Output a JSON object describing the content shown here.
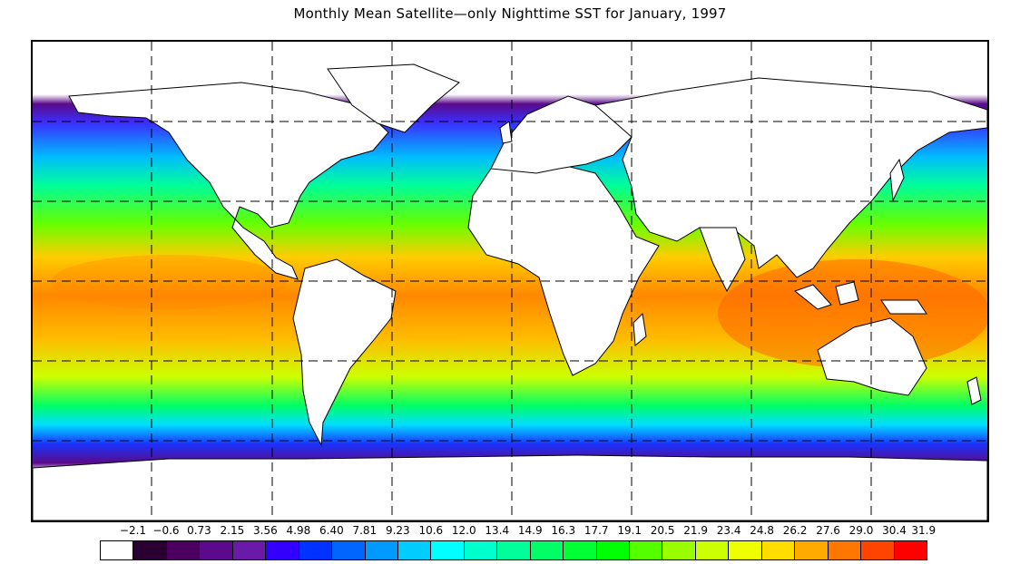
{
  "title": "Monthly Mean Satellite—only Nighttime SST for January, 1997",
  "legend": {
    "labels": [
      "−2.1",
      "−0.6",
      "0.73",
      "2.15",
      "3.56",
      "4.98",
      "6.40",
      "7.81",
      "9.23",
      "10.6",
      "12.0",
      "13.4",
      "14.9",
      "16.3",
      "17.7",
      "19.1",
      "20.5",
      "21.9",
      "23.4",
      "24.8",
      "26.2",
      "27.6",
      "29.0",
      "30.4",
      "31.9"
    ],
    "colors": [
      "#ffffff",
      "#2a0033",
      "#4b0060",
      "#5a0a8a",
      "#6a1aa8",
      "#3300ff",
      "#0033ff",
      "#0066ff",
      "#0099ff",
      "#00ccff",
      "#00ffff",
      "#00ffcc",
      "#00ff99",
      "#00ff66",
      "#00ff33",
      "#00ff00",
      "#55ff00",
      "#99ff00",
      "#ccff00",
      "#eeff00",
      "#ffdd00",
      "#ffaa00",
      "#ff7700",
      "#ff4400",
      "#ff0000"
    ]
  },
  "chart_data": {
    "type": "heatmap",
    "title": "Monthly Mean Satellite—only Nighttime SST for January, 1997",
    "xlabel": "",
    "ylabel": "",
    "color_scale": {
      "breaks": [
        -2.1,
        -0.6,
        0.73,
        2.15,
        3.56,
        4.98,
        6.4,
        7.81,
        9.23,
        10.6,
        12.0,
        13.4,
        14.9,
        16.3,
        17.7,
        19.1,
        20.5,
        21.9,
        23.4,
        24.8,
        26.2,
        27.6,
        29.0,
        30.4,
        31.9
      ]
    },
    "grid": true
  }
}
